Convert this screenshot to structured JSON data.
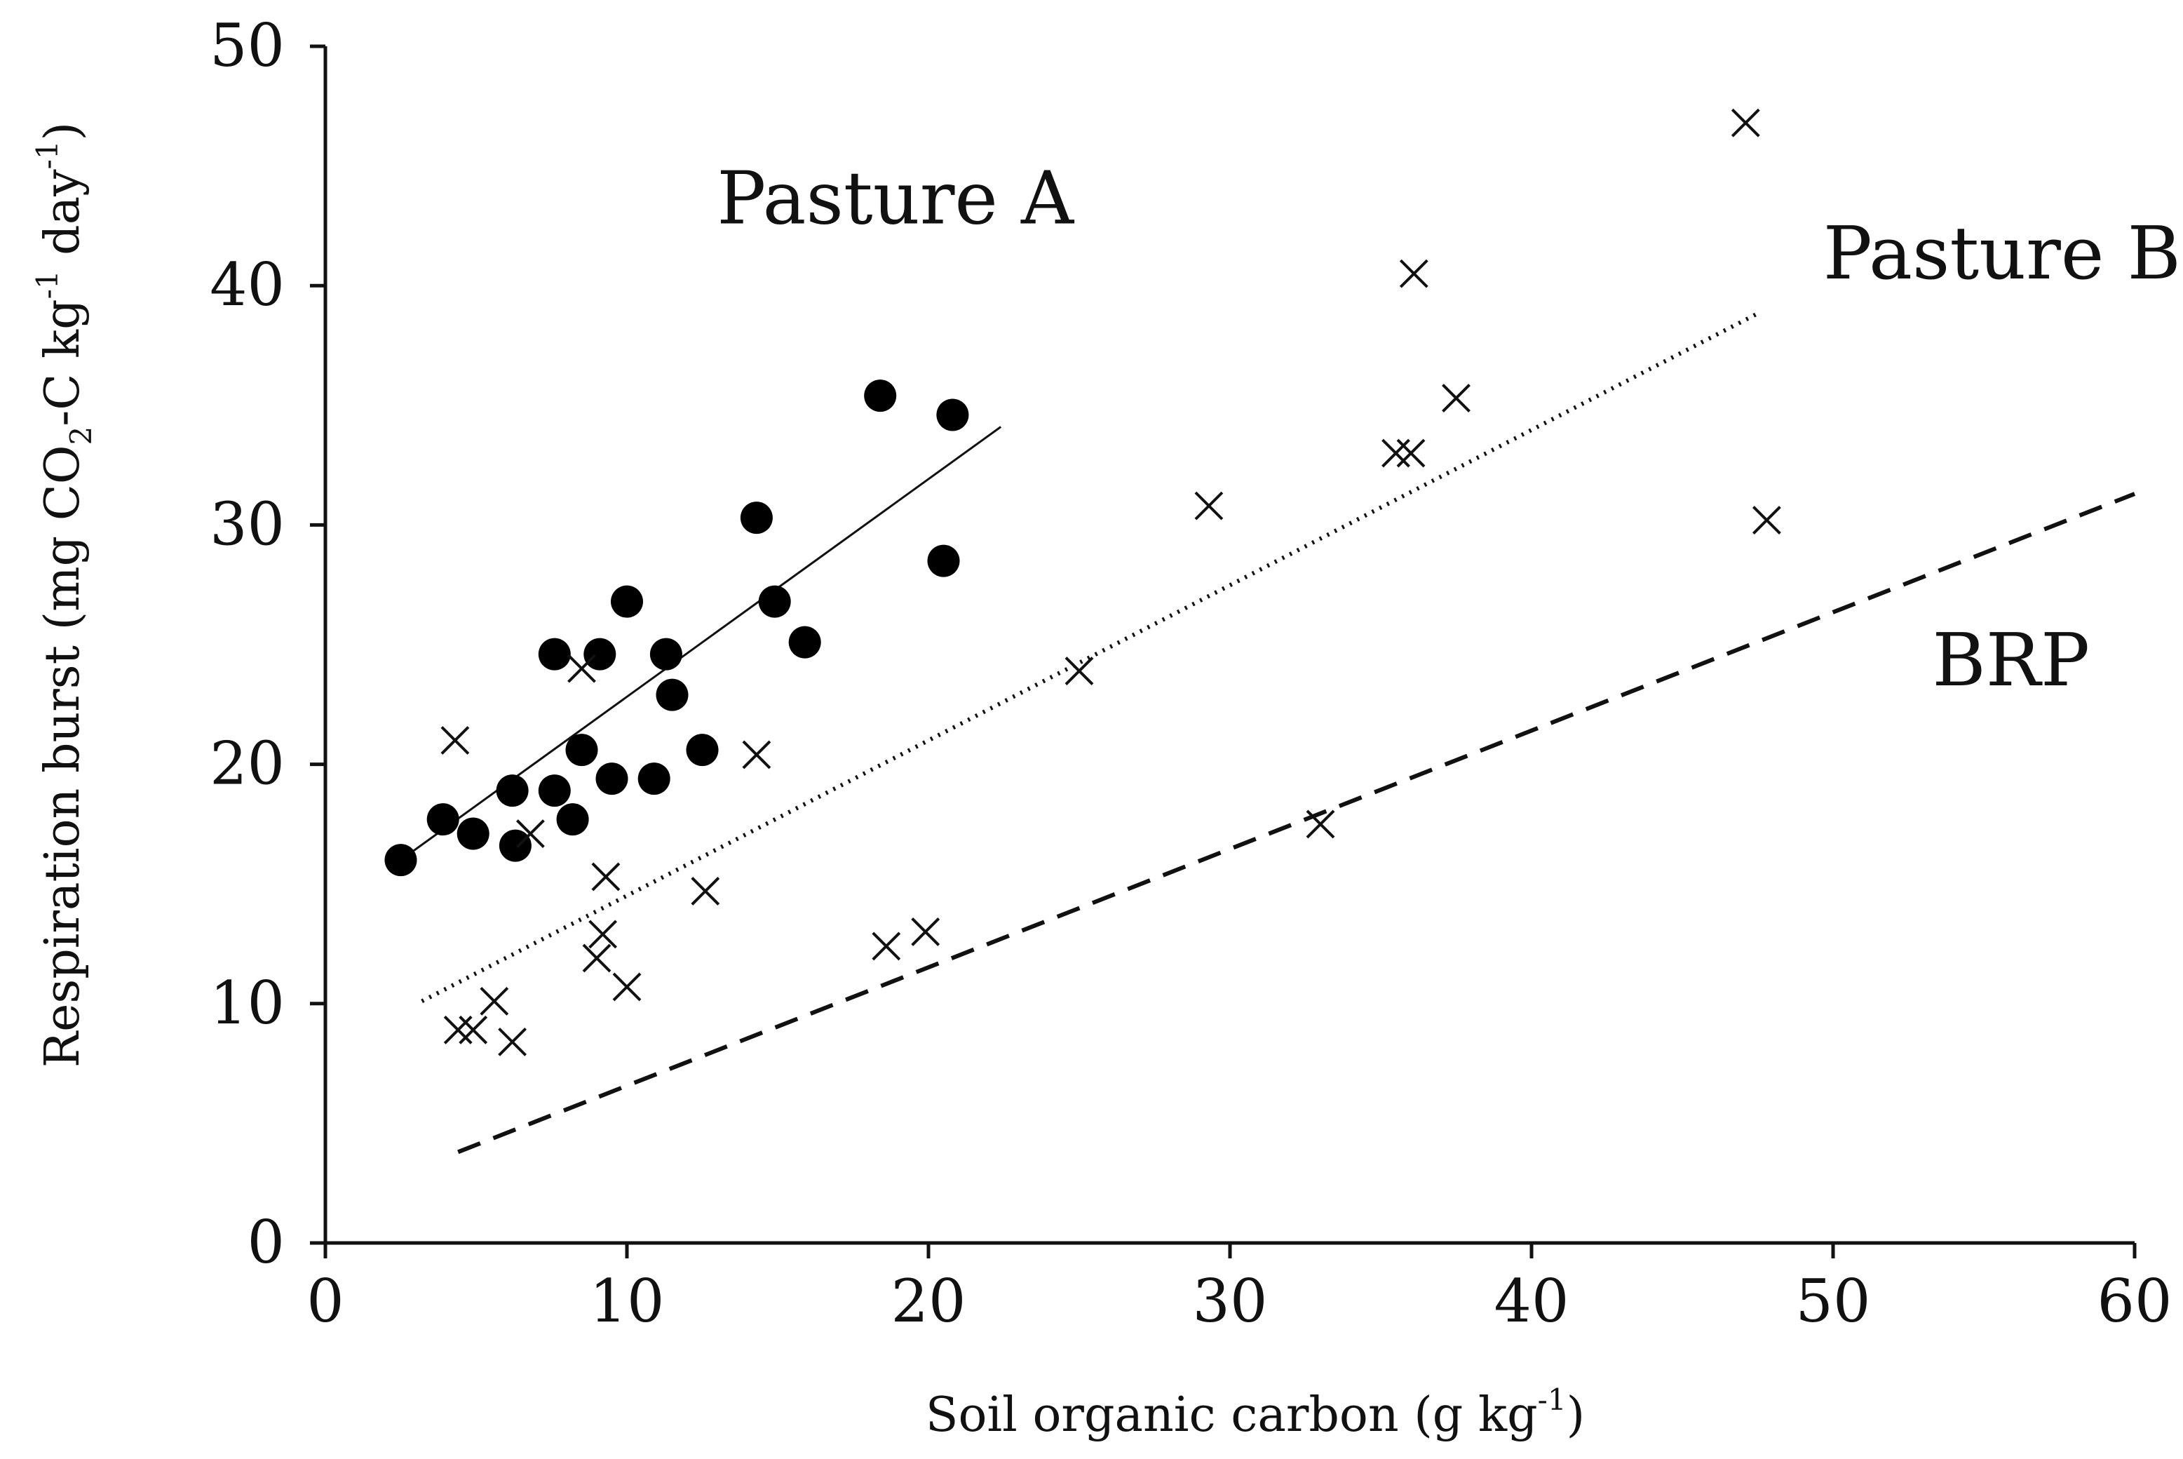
{
  "chart_data": {
    "type": "scatter",
    "title": "",
    "xlabel": "Soil organic carbon (g kg",
    "xlabel_superscript": "-1",
    "xlabel_suffix": ")",
    "ylabel": "Respiration burst (mg CO",
    "ylabel_subscript": "2",
    "ylabel_middle": "-C kg",
    "ylabel_superscript1": "-1",
    "ylabel_day": " day",
    "ylabel_superscript2": "-1",
    "ylabel_suffix": ")",
    "xlim": [
      0,
      60
    ],
    "ylim": [
      0,
      50
    ],
    "xticks": [
      0,
      10,
      20,
      30,
      40,
      50,
      60
    ],
    "yticks": [
      0,
      10,
      20,
      30,
      40,
      50
    ],
    "grid": false,
    "series": [
      {
        "name": "Pasture A",
        "marker": "filled-circle",
        "points": [
          [
            2.5,
            16.0
          ],
          [
            3.9,
            17.7
          ],
          [
            4.9,
            17.1
          ],
          [
            6.2,
            18.9
          ],
          [
            6.3,
            16.6
          ],
          [
            7.6,
            18.9
          ],
          [
            7.6,
            24.6
          ],
          [
            8.2,
            17.7
          ],
          [
            8.5,
            20.6
          ],
          [
            9.1,
            24.6
          ],
          [
            9.5,
            19.4
          ],
          [
            10.0,
            26.8
          ],
          [
            10.9,
            19.4
          ],
          [
            11.3,
            24.6
          ],
          [
            11.5,
            22.9
          ],
          [
            12.5,
            20.6
          ],
          [
            14.3,
            30.3
          ],
          [
            14.9,
            26.8
          ],
          [
            15.9,
            25.1
          ],
          [
            18.4,
            35.4
          ],
          [
            20.5,
            28.5
          ],
          [
            20.8,
            34.6
          ]
        ]
      },
      {
        "name": "Pasture B",
        "marker": "x",
        "points": [
          [
            4.3,
            21.0
          ],
          [
            4.4,
            8.9
          ],
          [
            4.9,
            8.9
          ],
          [
            5.6,
            10.1
          ],
          [
            6.2,
            8.4
          ],
          [
            6.8,
            17.1
          ],
          [
            8.5,
            24.0
          ],
          [
            9.0,
            11.9
          ],
          [
            9.2,
            12.9
          ],
          [
            9.3,
            15.3
          ],
          [
            10.0,
            10.7
          ],
          [
            12.6,
            14.7
          ],
          [
            14.3,
            20.4
          ],
          [
            18.6,
            12.4
          ],
          [
            19.9,
            13.0
          ],
          [
            25.0,
            23.9
          ],
          [
            29.3,
            30.8
          ],
          [
            33.0,
            17.5
          ],
          [
            35.5,
            33.0
          ],
          [
            36.0,
            33.0
          ],
          [
            36.1,
            40.5
          ],
          [
            37.5,
            35.3
          ],
          [
            47.1,
            46.8
          ],
          [
            47.8,
            30.2
          ]
        ]
      }
    ],
    "lines": [
      {
        "name": "Pasture A fit",
        "style": "solid",
        "x": [
          2.5,
          22.4
        ],
        "y": [
          16.0,
          34.1
        ]
      },
      {
        "name": "Pasture B fit",
        "style": "dotted",
        "x": [
          3.2,
          47.6
        ],
        "y": [
          10.1,
          38.9
        ]
      },
      {
        "name": "BRP",
        "style": "dashed",
        "x": [
          4.4,
          60.0
        ],
        "y": [
          3.8,
          31.3
        ]
      }
    ],
    "annotations": [
      {
        "text": "Pasture A",
        "x": 18.9,
        "y": 42.6
      },
      {
        "text": "Pasture B",
        "x": 55.6,
        "y": 40.3
      },
      {
        "text": "BRP",
        "x": 55.9,
        "y": 23.3
      }
    ]
  }
}
